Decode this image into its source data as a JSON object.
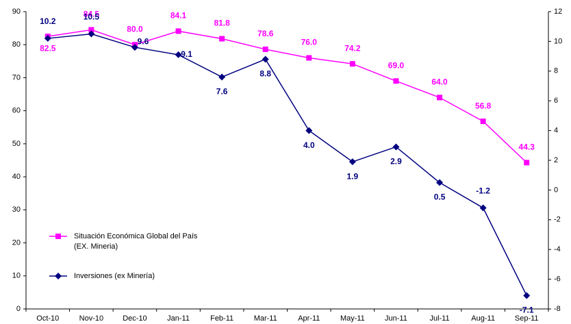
{
  "chart_data": {
    "type": "line",
    "categories": [
      "Oct-10",
      "Nov-10",
      "Dec-10",
      "Jan-11",
      "Feb-11",
      "Mar-11",
      "Apr-11",
      "May-11",
      "Jun-11",
      "Jul-11",
      "Aug-11",
      "Sep-11"
    ],
    "series": [
      {
        "name": "Situación Económica Global del País\n(EX. Mineria)",
        "color": "#ff00ff",
        "marker": "square",
        "values": [
          82.5,
          84.5,
          80.0,
          84.1,
          81.8,
          78.6,
          76.0,
          74.2,
          69.0,
          64.0,
          56.8,
          44.3
        ],
        "value_labels": [
          "82.5",
          "84.5",
          "80.0",
          "84.1",
          "81.8",
          "78.6",
          "76.0",
          "74.2",
          "69.0",
          "64.0",
          "56.8",
          "44.3"
        ]
      },
      {
        "name": "Inversiones (ex Minería)",
        "color": "#000080",
        "marker": "diamond",
        "axis": "y2",
        "values": [
          10.2,
          10.5,
          9.6,
          9.1,
          7.6,
          8.8,
          4.0,
          1.9,
          2.9,
          0.5,
          -1.2,
          -7.1
        ],
        "value_labels": [
          "10.2",
          "10.5",
          "9.6",
          "9.1",
          "7.6",
          "8.8",
          "4.0",
          "1.9",
          "2.9",
          "0.5",
          "-1.2",
          "-7.1"
        ]
      }
    ],
    "ylim": [
      0,
      90
    ],
    "yticks": [
      0,
      10,
      20,
      30,
      40,
      50,
      60,
      70,
      80,
      90
    ],
    "y2lim": [
      -8,
      12
    ],
    "y2ticks": [
      -8,
      -6,
      -4,
      -2,
      0,
      2,
      4,
      6,
      8,
      10,
      12
    ],
    "grid": false
  }
}
